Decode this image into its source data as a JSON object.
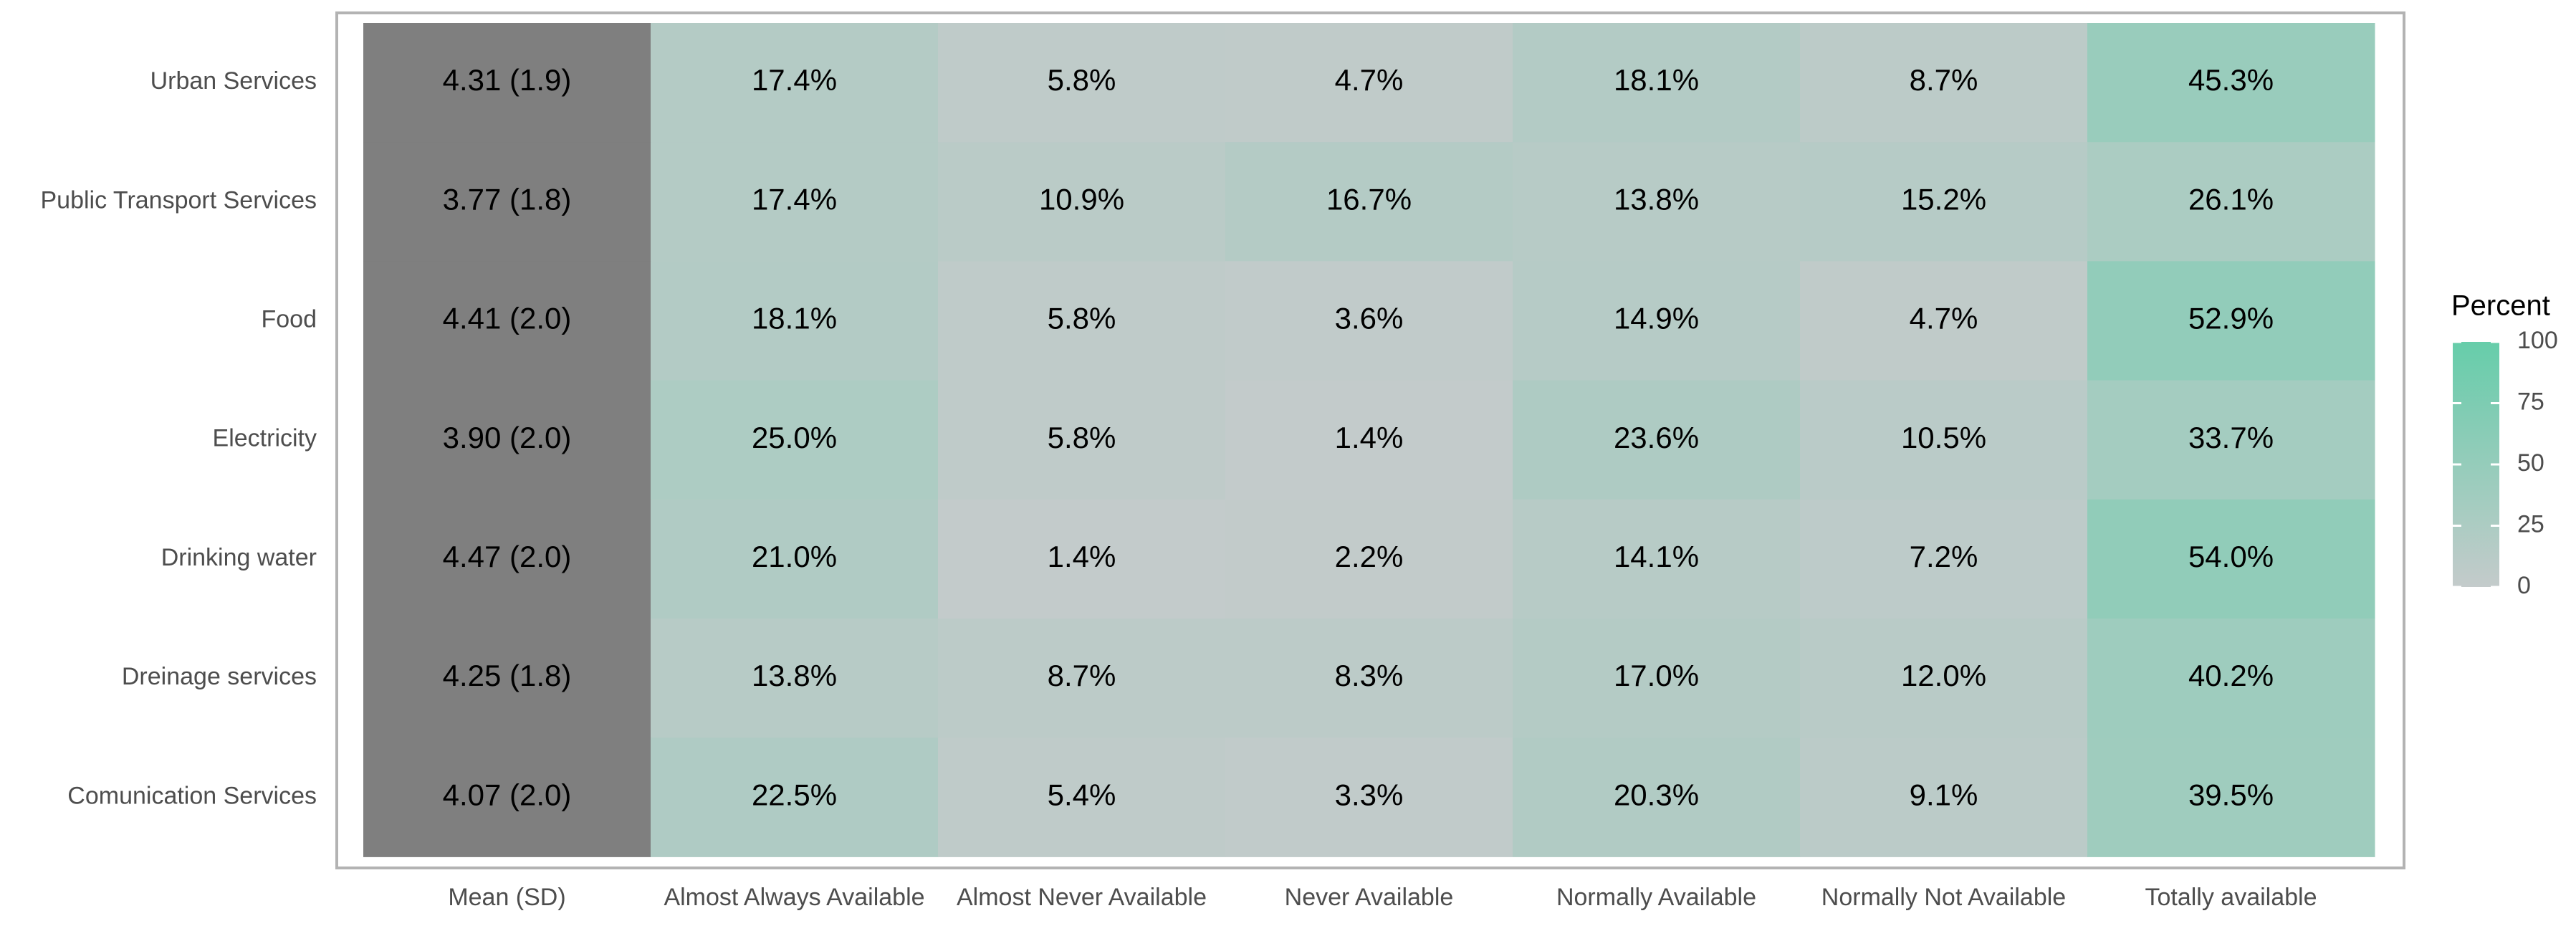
{
  "chart_data": {
    "type": "heatmap",
    "y_categories": [
      "Urban Services",
      "Public Transport Services",
      "Food",
      "Electricity",
      "Drinking water",
      "Dreinage services",
      "Comunication Services"
    ],
    "mean_header": "Mean (SD)",
    "mean_sd": [
      "4.31 (1.9)",
      "3.77 (1.8)",
      "4.41 (2.0)",
      "3.90 (2.0)",
      "4.47 (2.0)",
      "4.25 (1.8)",
      "4.07 (2.0)"
    ],
    "mean_color": "#7f7f7f",
    "x_categories": [
      "Almost Always Available",
      "Almost Never Available",
      "Never Available",
      "Normally Available",
      "Normally Not Available",
      "Totally available"
    ],
    "values": [
      [
        17.4,
        5.8,
        4.7,
        18.1,
        8.7,
        45.3
      ],
      [
        17.4,
        10.9,
        16.7,
        13.8,
        15.2,
        26.1
      ],
      [
        18.1,
        5.8,
        3.6,
        14.9,
        4.7,
        52.9
      ],
      [
        25.0,
        5.8,
        1.4,
        23.6,
        10.5,
        33.7
      ],
      [
        21.0,
        1.4,
        2.2,
        14.1,
        7.2,
        54.0
      ],
      [
        13.8,
        8.7,
        8.3,
        17.0,
        12.0,
        40.2
      ],
      [
        22.5,
        5.4,
        3.3,
        20.3,
        9.1,
        39.5
      ]
    ],
    "value_labels": [
      [
        "17.4%",
        "5.8%",
        "4.7%",
        "18.1%",
        "8.7%",
        "45.3%"
      ],
      [
        "17.4%",
        "10.9%",
        "16.7%",
        "13.8%",
        "15.2%",
        "26.1%"
      ],
      [
        "18.1%",
        "5.8%",
        "3.6%",
        "14.9%",
        "4.7%",
        "52.9%"
      ],
      [
        "25.0%",
        "5.8%",
        "1.4%",
        "23.6%",
        "10.5%",
        "33.7%"
      ],
      [
        "21.0%",
        "1.4%",
        "2.2%",
        "14.1%",
        "7.2%",
        "54.0%"
      ],
      [
        "13.8%",
        "8.7%",
        "8.3%",
        "17.0%",
        "12.0%",
        "40.2%"
      ],
      [
        "22.5%",
        "5.4%",
        "3.3%",
        "20.3%",
        "9.1%",
        "39.5%"
      ]
    ],
    "colorbar": {
      "title": "Percent",
      "lim": [
        0,
        100
      ],
      "ticks": [
        0,
        25,
        50,
        75,
        100
      ],
      "low_color": "#c4cbcb",
      "high_color": "#66cdaa"
    }
  }
}
